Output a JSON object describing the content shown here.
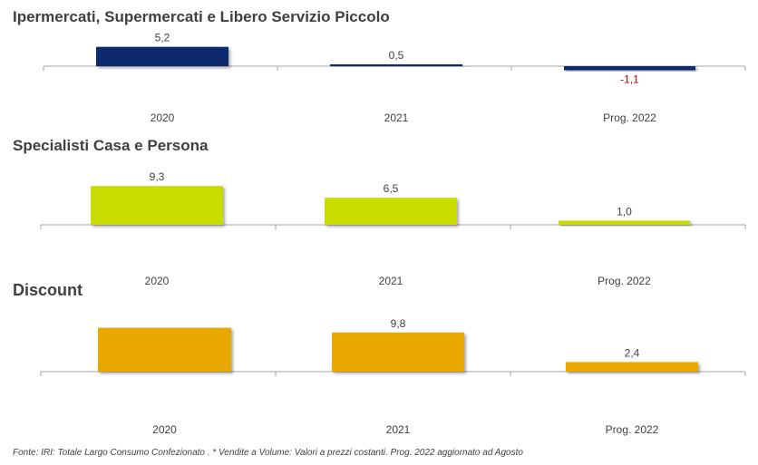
{
  "footnote": "Fonte: IRI: Totale Largo Consumo Confezionato . * Vendite a Volume: Valori a prezzi costanti.  Prog. 2022 aggiornato ad Agosto",
  "chart_data": [
    {
      "type": "bar",
      "title": "Ipermercati, Supermercati e Libero Servizio Piccolo",
      "categories": [
        "2020",
        "2021",
        "Prog. 2022"
      ],
      "values": [
        5.2,
        0.5,
        -1.1
      ],
      "value_labels": [
        "5,2",
        "0,5",
        "-1,1"
      ],
      "color": "#0f2a6e",
      "negative_label_color": "#c00000"
    },
    {
      "type": "bar",
      "title": "Specialisti Casa e Persona",
      "categories": [
        "2020",
        "2021",
        "Prog. 2022"
      ],
      "values": [
        9.3,
        6.5,
        1.0
      ],
      "value_labels": [
        "9,3",
        "6,5",
        "1,0"
      ],
      "color": "#c8dc00"
    },
    {
      "type": "bar",
      "title": "Discount",
      "categories": [
        "2020",
        "2021",
        "Prog. 2022"
      ],
      "values": [
        11.0,
        9.8,
        2.4
      ],
      "value_labels": [
        "",
        "9,8",
        "2,4"
      ],
      "color": "#e8a800"
    }
  ]
}
